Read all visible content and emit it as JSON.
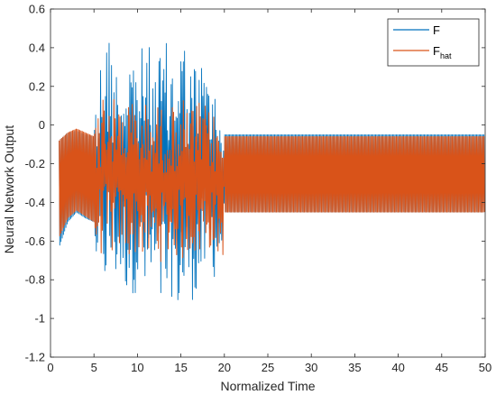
{
  "chart_data": {
    "type": "line",
    "title": "",
    "xlabel": "Normalized Time",
    "ylabel": "Neural Network Output",
    "xlim": [
      0,
      50
    ],
    "ylim": [
      -1.2,
      0.6
    ],
    "xticks": [
      0,
      5,
      10,
      15,
      20,
      25,
      30,
      35,
      40,
      45,
      50
    ],
    "yticks": [
      -1.2,
      -1,
      -0.8,
      -0.6,
      -0.4,
      -0.2,
      0,
      0.2,
      0.4,
      0.6
    ],
    "x_tick_labels": [
      "0",
      "5",
      "10",
      "15",
      "20",
      "25",
      "30",
      "35",
      "40",
      "45",
      "50"
    ],
    "y_tick_labels": [
      "-1.2",
      "-1",
      "-0.8",
      "-0.6",
      "-0.4",
      "-0.2",
      "0",
      "0.2",
      "0.4",
      "0.6"
    ],
    "legend_position": "top-right",
    "grid": false,
    "series": [
      {
        "name": "F",
        "name_main": "F",
        "name_sub": "",
        "color": "#0072BD",
        "x": [
          1.0,
          2.0,
          3.0,
          4.0,
          5.0,
          5.5,
          6.0,
          7.0,
          8.0,
          9.0,
          10.0,
          11.0,
          12.0,
          13.0,
          14.0,
          15.0,
          16.0,
          17.0,
          18.0,
          19.0,
          19.8,
          20.0,
          25.0,
          30.0,
          35.0,
          40.0,
          45.0,
          50.0
        ],
        "upper": [
          -0.08,
          -0.04,
          -0.03,
          -0.05,
          -0.06,
          0.22,
          0.52,
          0.48,
          0.22,
          0.52,
          0.35,
          0.46,
          0.32,
          0.45,
          0.38,
          0.56,
          0.32,
          0.36,
          0.32,
          0.18,
          0.12,
          -0.05,
          -0.05,
          -0.05,
          -0.05,
          -0.05,
          -0.05,
          -0.05
        ],
        "lower": [
          -0.63,
          -0.5,
          -0.45,
          -0.48,
          -0.5,
          -0.78,
          -0.88,
          -0.85,
          -0.82,
          -0.9,
          -0.86,
          -0.98,
          -0.92,
          -1.07,
          -0.88,
          -1.05,
          -0.9,
          -0.92,
          -0.78,
          -0.8,
          -0.7,
          -0.45,
          -0.45,
          -0.45,
          -0.45,
          -0.45,
          -0.45,
          -0.45
        ]
      },
      {
        "name": "F_hat",
        "name_main": "F",
        "name_sub": "hat",
        "color": "#D95319",
        "x": [
          1.0,
          2.0,
          3.0,
          4.0,
          5.0,
          5.5,
          6.0,
          7.0,
          8.0,
          9.0,
          10.0,
          11.0,
          12.0,
          13.0,
          14.0,
          15.0,
          16.0,
          17.0,
          18.0,
          19.0,
          19.8,
          20.0,
          25.0,
          30.0,
          35.0,
          40.0,
          45.0,
          50.0
        ],
        "upper": [
          -0.08,
          -0.04,
          -0.02,
          -0.04,
          -0.06,
          0.05,
          0.2,
          0.15,
          0.12,
          0.15,
          0.1,
          0.12,
          0.1,
          0.12,
          0.1,
          0.15,
          0.1,
          0.12,
          0.1,
          0.05,
          0.0,
          -0.06,
          -0.06,
          -0.06,
          -0.06,
          -0.06,
          -0.06,
          -0.06
        ],
        "lower": [
          -0.58,
          -0.48,
          -0.44,
          -0.47,
          -0.5,
          -0.62,
          -0.7,
          -0.68,
          -0.65,
          -0.7,
          -0.66,
          -0.72,
          -0.68,
          -0.72,
          -0.66,
          -0.72,
          -0.66,
          -0.7,
          -0.64,
          -0.66,
          -0.72,
          -0.45,
          -0.45,
          -0.45,
          -0.45,
          -0.45,
          -0.45,
          -0.45
        ]
      }
    ]
  }
}
